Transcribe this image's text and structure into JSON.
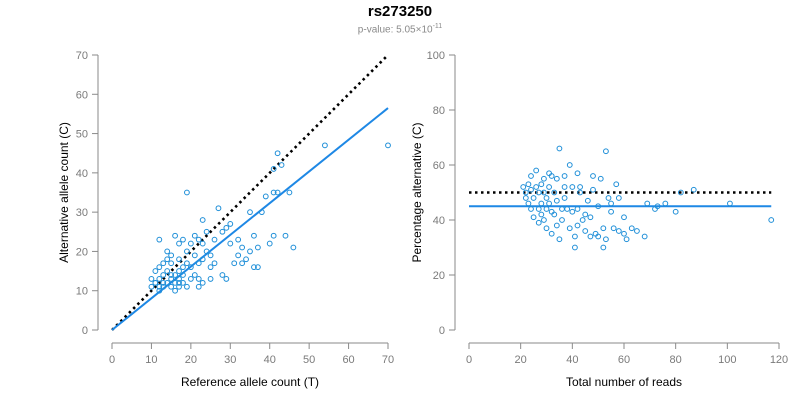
{
  "figure": {
    "title": "rs273250",
    "pvalue_prefix": "p-value: ",
    "pvalue_mantissa": "5.05",
    "pvalue_times": "×10",
    "pvalue_exponent": "-11",
    "point_color": "#1f8fd8",
    "fit_color": "#1e88e5",
    "reference_color": "#000000"
  },
  "chart_data": [
    {
      "type": "scatter",
      "id": "left",
      "title": "",
      "xlabel": "Reference allele count (T)",
      "ylabel": "Alternative allele count (C)",
      "xlim": [
        0,
        70
      ],
      "ylim": [
        0,
        70
      ],
      "xticks": [
        0,
        10,
        20,
        30,
        40,
        50,
        60,
        70
      ],
      "yticks": [
        0,
        10,
        20,
        30,
        40,
        50,
        60,
        70
      ],
      "reference_line": {
        "style": "dotted",
        "x": [
          0,
          70
        ],
        "y": [
          0,
          70
        ]
      },
      "fit_line": {
        "style": "solid",
        "x": [
          0,
          70
        ],
        "y": [
          0,
          56.5
        ]
      },
      "points": [
        [
          10,
          11
        ],
        [
          10,
          13
        ],
        [
          11,
          12
        ],
        [
          11,
          15
        ],
        [
          12,
          10
        ],
        [
          12,
          11
        ],
        [
          12,
          13
        ],
        [
          12,
          23
        ],
        [
          12,
          16
        ],
        [
          13,
          12
        ],
        [
          13,
          14
        ],
        [
          13,
          17
        ],
        [
          14,
          12
        ],
        [
          14,
          15
        ],
        [
          14,
          18
        ],
        [
          14,
          20
        ],
        [
          15,
          11
        ],
        [
          15,
          13
        ],
        [
          15,
          17
        ],
        [
          15,
          19
        ],
        [
          16,
          10
        ],
        [
          16,
          12
        ],
        [
          16,
          14
        ],
        [
          16,
          24
        ],
        [
          17,
          11
        ],
        [
          17,
          13
        ],
        [
          17,
          15
        ],
        [
          17,
          22
        ],
        [
          17,
          18
        ],
        [
          18,
          12
        ],
        [
          18,
          14
        ],
        [
          18,
          16
        ],
        [
          18,
          23
        ],
        [
          19,
          11
        ],
        [
          19,
          35
        ],
        [
          19,
          20
        ],
        [
          19,
          17
        ],
        [
          20,
          13
        ],
        [
          20,
          16
        ],
        [
          20,
          22
        ],
        [
          21,
          14
        ],
        [
          21,
          19
        ],
        [
          21,
          24
        ],
        [
          22,
          11
        ],
        [
          22,
          13
        ],
        [
          22,
          17
        ],
        [
          22,
          23
        ],
        [
          23,
          12
        ],
        [
          23,
          18
        ],
        [
          23,
          22
        ],
        [
          23,
          28
        ],
        [
          24,
          20
        ],
        [
          24,
          25
        ],
        [
          25,
          13
        ],
        [
          25,
          16
        ],
        [
          25,
          19
        ],
        [
          26,
          17
        ],
        [
          26,
          23
        ],
        [
          27,
          31
        ],
        [
          28,
          14
        ],
        [
          28,
          25
        ],
        [
          29,
          13
        ],
        [
          29,
          26
        ],
        [
          30,
          22
        ],
        [
          30,
          27
        ],
        [
          31,
          17
        ],
        [
          32,
          19
        ],
        [
          32,
          23
        ],
        [
          33,
          17
        ],
        [
          33,
          21
        ],
        [
          34,
          18
        ],
        [
          35,
          20
        ],
        [
          35,
          30
        ],
        [
          36,
          16
        ],
        [
          36,
          24
        ],
        [
          37,
          16
        ],
        [
          37,
          21
        ],
        [
          38,
          30
        ],
        [
          39,
          34
        ],
        [
          40,
          22
        ],
        [
          41,
          24
        ],
        [
          41,
          35
        ],
        [
          41,
          41
        ],
        [
          42,
          35
        ],
        [
          42,
          45
        ],
        [
          43,
          42
        ],
        [
          44,
          24
        ],
        [
          45,
          35
        ],
        [
          46,
          21
        ],
        [
          54,
          47
        ],
        [
          70,
          47
        ],
        [
          11,
          12
        ],
        [
          13,
          11
        ],
        [
          15,
          14
        ],
        [
          17,
          12
        ]
      ]
    },
    {
      "type": "scatter",
      "id": "right",
      "title": "",
      "xlabel": "Total number of reads",
      "ylabel": "Percentage alternative (C)",
      "xlim": [
        0,
        120
      ],
      "ylim": [
        0,
        100
      ],
      "xticks": [
        0,
        20,
        40,
        60,
        80,
        100,
        120
      ],
      "yticks": [
        0,
        20,
        40,
        60,
        80,
        100
      ],
      "reference_line": {
        "style": "dotted",
        "x": [
          0,
          117
        ],
        "y": [
          50,
          50
        ]
      },
      "fit_line": {
        "style": "solid",
        "x": [
          0,
          117
        ],
        "y": [
          45,
          45
        ]
      },
      "points": [
        [
          21,
          52
        ],
        [
          22,
          48
        ],
        [
          22,
          50
        ],
        [
          23,
          53
        ],
        [
          23,
          46
        ],
        [
          24,
          51
        ],
        [
          24,
          56
        ],
        [
          24,
          44
        ],
        [
          25,
          48
        ],
        [
          25,
          41
        ],
        [
          26,
          58
        ],
        [
          26,
          52
        ],
        [
          27,
          50
        ],
        [
          27,
          44
        ],
        [
          27,
          39
        ],
        [
          28,
          53
        ],
        [
          28,
          46
        ],
        [
          28,
          42
        ],
        [
          29,
          55
        ],
        [
          29,
          50
        ],
        [
          29,
          40
        ],
        [
          30,
          48
        ],
        [
          30,
          44
        ],
        [
          30,
          37
        ],
        [
          31,
          57
        ],
        [
          31,
          52
        ],
        [
          31,
          46
        ],
        [
          32,
          56
        ],
        [
          32,
          43
        ],
        [
          32,
          35
        ],
        [
          33,
          50
        ],
        [
          33,
          42
        ],
        [
          34,
          55
        ],
        [
          34,
          47
        ],
        [
          34,
          38
        ],
        [
          35,
          66
        ],
        [
          35,
          33
        ],
        [
          36,
          44
        ],
        [
          36,
          40
        ],
        [
          37,
          52
        ],
        [
          37,
          48
        ],
        [
          37,
          56
        ],
        [
          38,
          44
        ],
        [
          39,
          37
        ],
        [
          39,
          60
        ],
        [
          40,
          43
        ],
        [
          40,
          52
        ],
        [
          41,
          34
        ],
        [
          41,
          30
        ],
        [
          42,
          57
        ],
        [
          42,
          44
        ],
        [
          42,
          38
        ],
        [
          43,
          50
        ],
        [
          43,
          52
        ],
        [
          44,
          40
        ],
        [
          45,
          42
        ],
        [
          45,
          36
        ],
        [
          46,
          47
        ],
        [
          47,
          41
        ],
        [
          47,
          34
        ],
        [
          48,
          51
        ],
        [
          48,
          56
        ],
        [
          49,
          35
        ],
        [
          50,
          34
        ],
        [
          50,
          45
        ],
        [
          51,
          55
        ],
        [
          52,
          37
        ],
        [
          52,
          30
        ],
        [
          53,
          33
        ],
        [
          53,
          65
        ],
        [
          54,
          48
        ],
        [
          55,
          46
        ],
        [
          55,
          43
        ],
        [
          56,
          37
        ],
        [
          57,
          53
        ],
        [
          58,
          48
        ],
        [
          58,
          36
        ],
        [
          60,
          41
        ],
        [
          60,
          35
        ],
        [
          61,
          33
        ],
        [
          63,
          37
        ],
        [
          65,
          36
        ],
        [
          68,
          34
        ],
        [
          69,
          46
        ],
        [
          72,
          44
        ],
        [
          73,
          45
        ],
        [
          76,
          46
        ],
        [
          80,
          43
        ],
        [
          82,
          50
        ],
        [
          87,
          51
        ],
        [
          101,
          46
        ],
        [
          117,
          40
        ]
      ]
    }
  ]
}
